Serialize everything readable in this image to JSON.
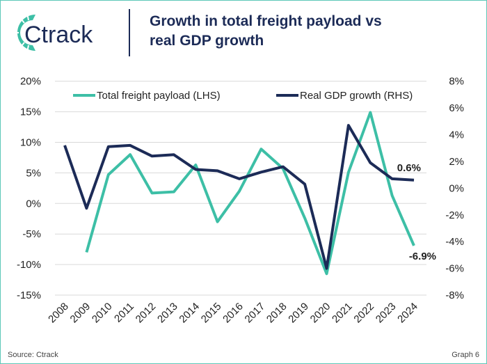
{
  "header": {
    "logo_text": "Ctrack",
    "title": "Growth in total freight payload vs real GDP growth"
  },
  "footer": {
    "source": "Source: Ctrack",
    "graph_label": "Graph 6"
  },
  "colors": {
    "freight": "#3dbfa6",
    "gdp": "#1c2b57",
    "grid": "#d9d9d9",
    "border": "#5cc8b8"
  },
  "chart_data": {
    "type": "line",
    "categories": [
      "2008",
      "2009",
      "2010",
      "2011",
      "2012",
      "2013",
      "2014",
      "2015",
      "2016",
      "2017",
      "2018",
      "2019",
      "2020",
      "2021",
      "2022",
      "2023",
      "2024"
    ],
    "series": [
      {
        "name": "Total freight payload (LHS)",
        "axis": "left",
        "values": [
          null,
          -8.0,
          4.7,
          8.0,
          1.7,
          1.9,
          6.3,
          -3.0,
          2.0,
          8.9,
          5.7,
          -2.4,
          -11.5,
          5.1,
          14.9,
          1.3,
          -6.9
        ]
      },
      {
        "name": "Real GDP growth (RHS)",
        "axis": "right",
        "values": [
          3.2,
          -1.5,
          3.1,
          3.2,
          2.4,
          2.5,
          1.4,
          1.3,
          0.7,
          1.2,
          1.6,
          0.3,
          -6.0,
          4.7,
          1.9,
          0.7,
          0.6
        ]
      }
    ],
    "left_axis": {
      "ylim": [
        -15,
        20
      ],
      "ticks": [
        "20%",
        "15%",
        "10%",
        "5%",
        "0%",
        "-5%",
        "-10%",
        "-15%"
      ]
    },
    "right_axis": {
      "ylim": [
        -8,
        8
      ],
      "ticks": [
        "8%",
        "6%",
        "4%",
        "2%",
        "0%",
        "-2%",
        "-4%",
        "-6%",
        "-8%"
      ]
    },
    "annotations": [
      {
        "text": "0.6%",
        "series": 1,
        "x": "2024"
      },
      {
        "text": "-6.9%",
        "series": 0,
        "x": "2024"
      }
    ],
    "grid": true,
    "legend": "top"
  }
}
